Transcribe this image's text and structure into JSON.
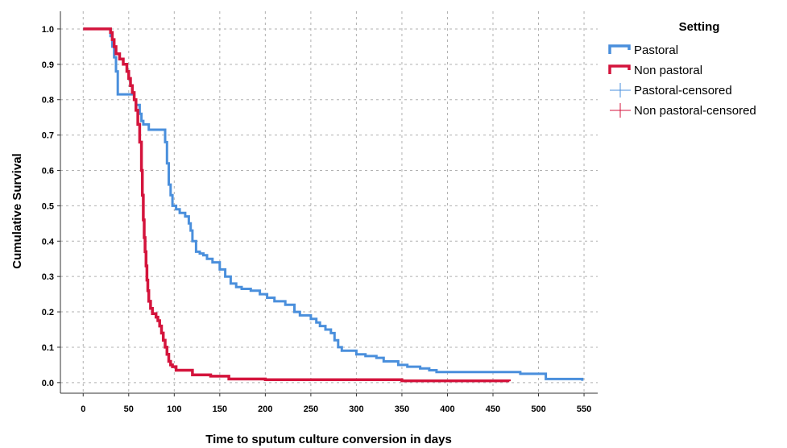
{
  "chart_data": {
    "type": "line",
    "step": true,
    "xlabel": "Time to sputum culture conversion in days",
    "ylabel": "Cumulative Survival",
    "xlim": [
      -25,
      565
    ],
    "ylim": [
      -0.03,
      1.05
    ],
    "xticks": [
      0,
      50,
      100,
      150,
      200,
      250,
      300,
      350,
      400,
      450,
      500,
      550
    ],
    "yticks": [
      0.0,
      0.1,
      0.2,
      0.3,
      0.4,
      0.5,
      0.6,
      0.7,
      0.8,
      0.9,
      1.0
    ],
    "xtick_labels": [
      "0",
      "50",
      "100",
      "150",
      "200",
      "250",
      "300",
      "350",
      "400",
      "450",
      "500",
      "550"
    ],
    "ytick_labels": [
      "0.0",
      "0.1",
      "0.2",
      "0.3",
      "0.4",
      "0.5",
      "0.6",
      "0.7",
      "0.8",
      "0.9",
      "1.0"
    ],
    "grid": true,
    "legend": {
      "title": "Setting",
      "placement": "right",
      "entries": [
        {
          "label": "Pastoral",
          "color": "#4a8fdc",
          "kind": "step-line"
        },
        {
          "label": "Non pastoral",
          "color": "#d4143c",
          "kind": "step-line"
        },
        {
          "label": "Pastoral-censored",
          "color": "#4a8fdc",
          "kind": "censor-mark"
        },
        {
          "label": "Non pastoral-censored",
          "color": "#d4143c",
          "kind": "censor-mark"
        }
      ]
    },
    "series": [
      {
        "name": "Pastoral",
        "color": "#4a8fdc",
        "x": [
          0,
          30,
          32,
          34,
          36,
          38,
          56,
          58,
          62,
          64,
          66,
          72,
          90,
          92,
          94,
          96,
          98,
          102,
          106,
          112,
          116,
          118,
          120,
          124,
          128,
          132,
          136,
          142,
          150,
          156,
          162,
          168,
          174,
          184,
          194,
          202,
          210,
          222,
          232,
          238,
          244,
          250,
          256,
          260,
          266,
          272,
          276,
          280,
          284,
          290,
          300,
          310,
          322,
          330,
          346,
          356,
          370,
          380,
          388,
          480,
          508,
          548
        ],
        "y": [
          1.0,
          0.98,
          0.95,
          0.92,
          0.88,
          0.815,
          0.8,
          0.785,
          0.76,
          0.74,
          0.73,
          0.715,
          0.68,
          0.62,
          0.56,
          0.53,
          0.5,
          0.49,
          0.48,
          0.47,
          0.45,
          0.43,
          0.4,
          0.37,
          0.365,
          0.36,
          0.35,
          0.34,
          0.32,
          0.3,
          0.28,
          0.27,
          0.265,
          0.26,
          0.25,
          0.24,
          0.23,
          0.22,
          0.2,
          0.19,
          0.19,
          0.18,
          0.17,
          0.16,
          0.15,
          0.14,
          0.12,
          0.1,
          0.09,
          0.09,
          0.08,
          0.075,
          0.07,
          0.06,
          0.05,
          0.045,
          0.04,
          0.035,
          0.03,
          0.025,
          0.01,
          0.005
        ]
      },
      {
        "name": "Non pastoral",
        "color": "#d4143c",
        "x": [
          0,
          30,
          32,
          34,
          36,
          40,
          44,
          48,
          50,
          52,
          54,
          56,
          58,
          60,
          62,
          64,
          65,
          66,
          67,
          68,
          69,
          70,
          71,
          72,
          74,
          76,
          80,
          82,
          84,
          86,
          88,
          90,
          92,
          94,
          96,
          98,
          102,
          120,
          140,
          160,
          200,
          350,
          468
        ],
        "y": [
          1.0,
          0.99,
          0.97,
          0.95,
          0.93,
          0.915,
          0.9,
          0.88,
          0.86,
          0.84,
          0.82,
          0.8,
          0.77,
          0.73,
          0.68,
          0.6,
          0.53,
          0.46,
          0.41,
          0.37,
          0.33,
          0.29,
          0.26,
          0.23,
          0.21,
          0.195,
          0.185,
          0.175,
          0.16,
          0.14,
          0.12,
          0.1,
          0.08,
          0.06,
          0.05,
          0.045,
          0.035,
          0.022,
          0.018,
          0.01,
          0.008,
          0.005,
          0.004
        ]
      }
    ]
  }
}
